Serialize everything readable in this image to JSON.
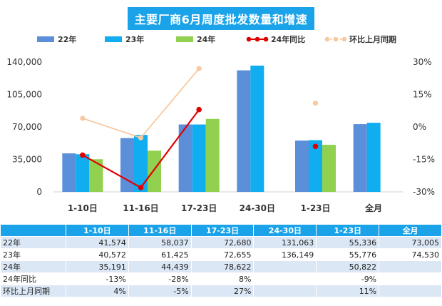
{
  "title": "主要厂商6月周度批发数量和增速",
  "colors": {
    "y22": "#5b8fd9",
    "y23": "#10aef0",
    "y24": "#92d050",
    "yoy": "#e00000",
    "mom": "#f8c9a0",
    "title_bg": "#1aa3e8"
  },
  "chart_data": {
    "type": "bar",
    "categories": [
      "1-10日",
      "11-16日",
      "17-23日",
      "24-30日",
      "1-23日",
      "全月"
    ],
    "series": [
      {
        "name": "22年",
        "type": "bar",
        "axis": "left",
        "values": [
          41574,
          58037,
          72680,
          131063,
          55336,
          73005
        ]
      },
      {
        "name": "23年",
        "type": "bar",
        "axis": "left",
        "values": [
          40572,
          61425,
          72655,
          136149,
          55776,
          74530
        ]
      },
      {
        "name": "24年",
        "type": "bar",
        "axis": "left",
        "values": [
          35191,
          44439,
          78622,
          null,
          50822,
          null
        ]
      },
      {
        "name": "24年同比",
        "type": "line",
        "axis": "right",
        "values": [
          -13,
          -28,
          8,
          null,
          -9,
          null
        ]
      },
      {
        "name": "环比上月同期",
        "type": "line",
        "axis": "right",
        "values": [
          4,
          -5,
          27,
          null,
          11,
          null
        ]
      }
    ],
    "y_left": {
      "min": 0,
      "max": 140000,
      "ticks": [
        "0",
        "35,000",
        "70,000",
        "105,000",
        "140,000"
      ]
    },
    "y_right": {
      "min": -30,
      "max": 30,
      "ticks": [
        "-30%",
        "-15%",
        "0%",
        "15%",
        "30%"
      ]
    },
    "legend_position": "top"
  },
  "table": {
    "headers": [
      "",
      "1-10日",
      "11-16日",
      "17-23日",
      "24-30日",
      "1-23日",
      "全月"
    ],
    "rows": [
      {
        "label": "22年",
        "cells": [
          "41,574",
          "58,037",
          "72,680",
          "131,063",
          "55,336",
          "73,005"
        ]
      },
      {
        "label": "23年",
        "cells": [
          "40,572",
          "61,425",
          "72,655",
          "136,149",
          "55,776",
          "74,530"
        ]
      },
      {
        "label": "24年",
        "cells": [
          "35,191",
          "44,439",
          "78,622",
          "",
          "50,822",
          ""
        ]
      },
      {
        "label": "24年同比",
        "cells": [
          "-13%",
          "-28%",
          "8%",
          "",
          "-9%",
          ""
        ]
      },
      {
        "label": "环比上月同期",
        "cells": [
          "4%",
          "-5%",
          "27%",
          "",
          "11%",
          ""
        ]
      }
    ]
  }
}
